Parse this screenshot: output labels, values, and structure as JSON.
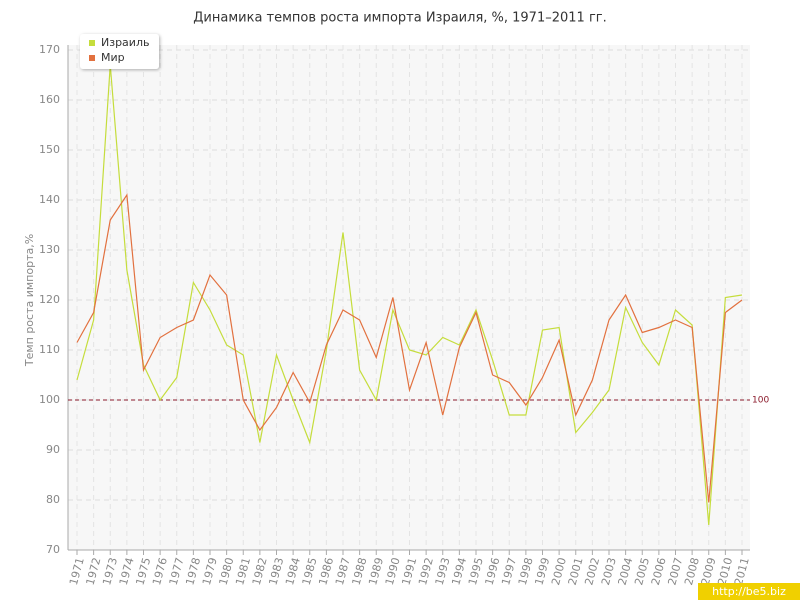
{
  "chart_data": {
    "type": "line",
    "title": "Динамика темпов роста импорта Израиля, %, 1971–2011 гг.",
    "y_label": "Темп роста импорта,%",
    "categories": [
      "1971",
      "1972",
      "1973",
      "1974",
      "1975",
      "1976",
      "1977",
      "1978",
      "1979",
      "1980",
      "1981",
      "1982",
      "1983",
      "1984",
      "1985",
      "1986",
      "1987",
      "1988",
      "1989",
      "1990",
      "1991",
      "1992",
      "1993",
      "1994",
      "1995",
      "1996",
      "1997",
      "1998",
      "1999",
      "2000",
      "2001",
      "2002",
      "2003",
      "2004",
      "2005",
      "2006",
      "2007",
      "2008",
      "2009",
      "2010",
      "2011"
    ],
    "series": [
      {
        "name": "Израиль",
        "color": "#c5dd3c",
        "values": [
          104,
          116,
          167,
          126,
          107,
          100,
          104.5,
          123.5,
          118,
          111,
          109,
          91.5,
          109,
          100,
          91.5,
          110,
          133.5,
          106,
          100,
          118,
          110,
          109,
          112.5,
          111,
          118,
          108,
          97,
          97,
          114,
          114.5,
          93.5,
          97.5,
          102,
          118.5,
          111.5,
          107,
          118,
          115,
          75,
          120.5,
          121
        ]
      },
      {
        "name": "Мир",
        "color": "#e2713f",
        "values": [
          111.5,
          117.5,
          136,
          141,
          106,
          112.5,
          114.5,
          116,
          125,
          121,
          100,
          94,
          98.5,
          105.5,
          99.5,
          111,
          118,
          116,
          108.5,
          120.5,
          102,
          111.5,
          97,
          110.5,
          117.5,
          105,
          103.5,
          99,
          104.5,
          112,
          97,
          104,
          116,
          121,
          113.5,
          114.5,
          116,
          114.5,
          79.5,
          117.5,
          120
        ]
      }
    ],
    "ylim": [
      70,
      170
    ],
    "yticks": [
      70,
      80,
      90,
      100,
      110,
      120,
      130,
      140,
      150,
      160,
      170
    ],
    "grid": true,
    "reference_line": 100,
    "reference_color": "#8b1a2b",
    "legend": "top-left",
    "watermark": "http://be5.biz"
  }
}
